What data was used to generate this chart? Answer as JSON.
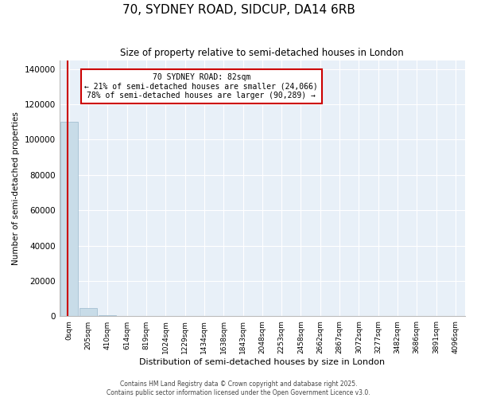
{
  "title": "70, SYDNEY ROAD, SIDCUP, DA14 6RB",
  "subtitle": "Size of property relative to semi-detached houses in London",
  "xlabel": "Distribution of semi-detached houses by size in London",
  "ylabel": "Number of semi-detached properties",
  "bar_color": "#c8dce8",
  "bar_edge_color": "#9ab8cc",
  "property_line_color": "#cc0000",
  "annotation_box_color": "#cc0000",
  "annotation_line1": "70 SYDNEY ROAD: 82sqm",
  "annotation_line2": "← 21% of semi-detached houses are smaller (24,066)",
  "annotation_line3": "78% of semi-detached houses are larger (90,289) →",
  "ylim": [
    0,
    145000
  ],
  "yticks": [
    0,
    20000,
    40000,
    60000,
    80000,
    100000,
    120000,
    140000
  ],
  "bin_labels": [
    "0sqm",
    "205sqm",
    "410sqm",
    "614sqm",
    "819sqm",
    "1024sqm",
    "1229sqm",
    "1434sqm",
    "1638sqm",
    "1843sqm",
    "2048sqm",
    "2253sqm",
    "2458sqm",
    "2662sqm",
    "2867sqm",
    "3072sqm",
    "3277sqm",
    "3482sqm",
    "3686sqm",
    "3891sqm",
    "4096sqm"
  ],
  "bar_heights": [
    110000,
    4500,
    500,
    200,
    100,
    60,
    40,
    25,
    18,
    12,
    9,
    7,
    5,
    4,
    3,
    3,
    2,
    2,
    2,
    1,
    1
  ],
  "copyright_text": "Contains HM Land Registry data © Crown copyright and database right 2025.\nContains public sector information licensed under the Open Government Licence v3.0.",
  "background_color": "#ffffff",
  "plot_bg_color": "#e8f0f8",
  "grid_color": "#ffffff"
}
